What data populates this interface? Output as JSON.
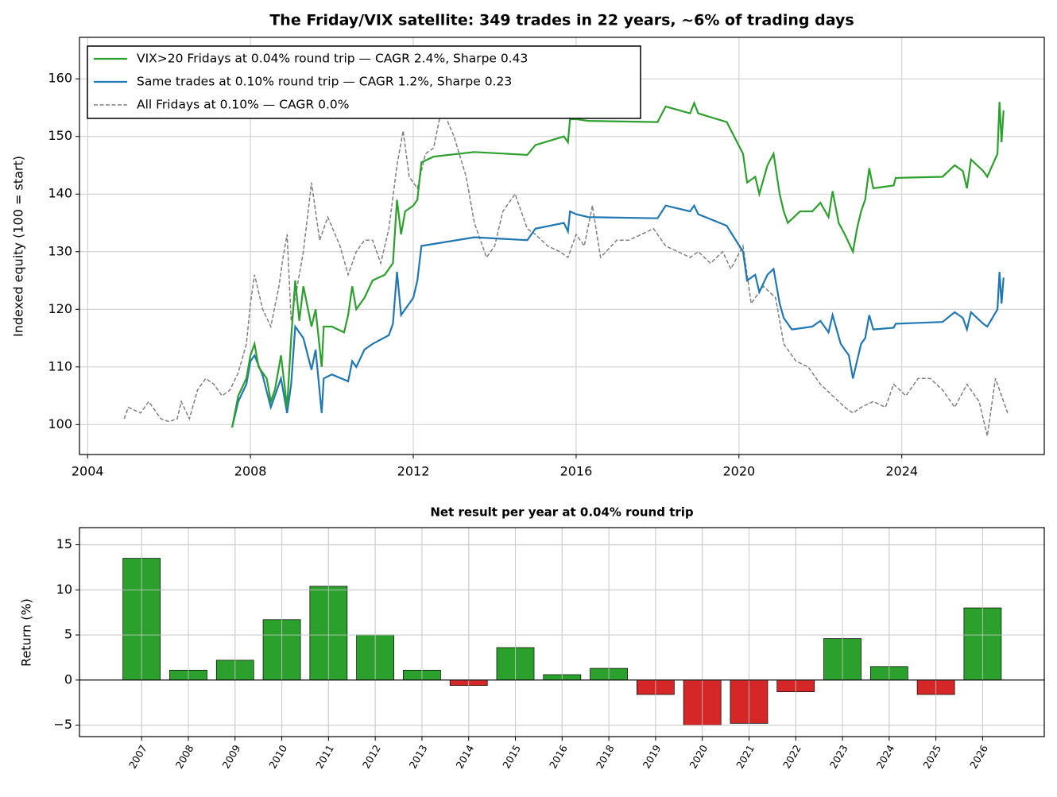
{
  "chart_data": [
    {
      "type": "line",
      "title": "The Friday/VIX satellite: 349 trades in 22 years, ~6% of trading days",
      "y_label": "Indexed equity (100 = start)",
      "xlim": [
        2003.8,
        2027.5
      ],
      "xticks": [
        2004,
        2008,
        2012,
        2016,
        2020,
        2024
      ],
      "ylim": [
        94.8,
        167.2
      ],
      "yticks": [
        100,
        110,
        120,
        130,
        140,
        150,
        160
      ],
      "grid": true,
      "legend": "upper left",
      "series": [
        {
          "name": "VIX>20 Fridays at 0.04% round trip — CAGR 2.4%, Sharpe 0.43",
          "color": "#2ca02c",
          "linestyle": "solid",
          "x": [
            2007.55,
            2007.7,
            2007.9,
            2008.0,
            2008.1,
            2008.2,
            2008.4,
            2008.5,
            2008.6,
            2008.75,
            2008.9,
            2009.0,
            2009.1,
            2009.2,
            2009.3,
            2009.5,
            2009.6,
            2009.75,
            2009.8,
            2010.0,
            2010.3,
            2010.4,
            2010.5,
            2010.6,
            2010.8,
            2011.0,
            2011.3,
            2011.5,
            2011.6,
            2011.7,
            2011.8,
            2012.0,
            2012.1,
            2012.2,
            2012.5,
            2013.5,
            2014.8,
            2015.0,
            2015.7,
            2015.8,
            2015.85,
            2016.0,
            2016.3,
            2018.0,
            2018.2,
            2018.8,
            2018.9,
            2019.0,
            2019.7,
            2020.1,
            2020.2,
            2020.4,
            2020.5,
            2020.7,
            2020.85,
            2021.0,
            2021.1,
            2021.2,
            2021.5,
            2021.8,
            2022.0,
            2022.2,
            2022.3,
            2022.45,
            2022.6,
            2022.8,
            2022.9,
            2023.0,
            2023.1,
            2023.2,
            2023.3,
            2023.8,
            2023.85,
            2025.0,
            2025.3,
            2025.5,
            2025.6,
            2025.7,
            2026.0,
            2026.1,
            2026.35,
            2026.4,
            2026.45,
            2026.5
          ],
          "values": [
            99.5,
            105,
            108,
            112,
            114,
            110,
            108,
            104,
            106,
            112,
            103,
            115,
            125,
            118,
            124,
            117,
            120,
            110,
            117,
            117,
            116,
            119,
            124,
            120,
            122,
            125,
            126,
            128,
            139,
            133,
            137,
            138,
            139,
            145.5,
            146.5,
            147.3,
            146.8,
            148.5,
            150,
            149,
            153,
            153,
            152.7,
            152.5,
            155.2,
            154,
            155.8,
            154,
            152.5,
            147,
            142,
            143,
            140,
            145,
            147,
            140,
            137,
            135,
            137,
            137,
            138.5,
            136,
            140.5,
            135,
            133,
            130,
            134,
            137,
            139,
            144.5,
            141,
            141.5,
            142.8,
            143,
            145,
            144,
            141,
            146,
            144,
            143,
            147,
            156,
            149,
            154.5
          ]
        },
        {
          "name": "Same trades at 0.10% round trip — CAGR 1.2%, Sharpe 0.23",
          "color": "#1f77b4",
          "linestyle": "solid",
          "x": [
            2007.55,
            2007.7,
            2007.9,
            2008.0,
            2008.1,
            2008.3,
            2008.5,
            2008.6,
            2008.75,
            2008.9,
            2009.0,
            2009.1,
            2009.3,
            2009.5,
            2009.6,
            2009.75,
            2009.8,
            2010.0,
            2010.4,
            2010.5,
            2010.6,
            2010.8,
            2011.0,
            2011.4,
            2011.5,
            2011.6,
            2011.7,
            2011.9,
            2012.0,
            2012.1,
            2012.2,
            2013.5,
            2014.8,
            2015.0,
            2015.7,
            2015.8,
            2015.85,
            2016.0,
            2016.3,
            2018.0,
            2018.2,
            2018.8,
            2018.9,
            2019.0,
            2019.7,
            2020.1,
            2020.2,
            2020.4,
            2020.5,
            2020.7,
            2020.85,
            2021.0,
            2021.1,
            2021.3,
            2021.8,
            2022.0,
            2022.2,
            2022.3,
            2022.5,
            2022.7,
            2022.8,
            2022.9,
            2023.0,
            2023.1,
            2023.2,
            2023.3,
            2023.8,
            2023.85,
            2025.0,
            2025.3,
            2025.5,
            2025.6,
            2025.7,
            2026.0,
            2026.1,
            2026.35,
            2026.4,
            2026.45,
            2026.5
          ],
          "values": [
            99.5,
            104,
            107,
            111,
            112,
            108.5,
            103,
            105,
            108,
            102,
            107,
            117,
            115,
            109.5,
            113,
            102,
            108,
            108.7,
            107.5,
            111,
            110,
            113,
            114,
            115.5,
            117.5,
            126.5,
            119,
            121,
            122,
            125,
            131,
            132.5,
            132,
            134,
            135,
            133.5,
            137,
            136.5,
            136,
            135.8,
            138,
            137,
            138,
            136.5,
            134.5,
            130,
            125,
            126,
            123,
            126,
            127,
            121,
            118.5,
            116.5,
            117,
            118,
            116,
            119,
            114,
            112,
            108,
            111,
            114,
            115,
            119,
            116.5,
            116.8,
            117.5,
            117.8,
            119.5,
            118.5,
            116.5,
            119.5,
            117.5,
            117,
            120,
            126.5,
            121,
            125.5
          ]
        },
        {
          "name": "All Fridays at 0.10% — CAGR 0.0%",
          "color": "#7f7f7f",
          "linestyle": "dashed",
          "x": [
            2004.9,
            2005.0,
            2005.3,
            2005.5,
            2005.8,
            2006.0,
            2006.2,
            2006.3,
            2006.5,
            2006.7,
            2006.9,
            2007.1,
            2007.3,
            2007.5,
            2007.7,
            2007.9,
            2008.0,
            2008.1,
            2008.3,
            2008.5,
            2008.7,
            2008.8,
            2008.9,
            2009.0,
            2009.2,
            2009.3,
            2009.5,
            2009.7,
            2009.9,
            2010.2,
            2010.4,
            2010.6,
            2010.8,
            2011.0,
            2011.2,
            2011.4,
            2011.6,
            2011.75,
            2011.9,
            2012.1,
            2012.3,
            2012.5,
            2012.7,
            2013.0,
            2013.3,
            2013.5,
            2013.8,
            2014.0,
            2014.2,
            2014.5,
            2014.8,
            2015.0,
            2015.3,
            2015.6,
            2015.8,
            2016.0,
            2016.2,
            2016.4,
            2016.6,
            2017.0,
            2017.3,
            2017.6,
            2017.9,
            2018.2,
            2018.5,
            2018.8,
            2019.0,
            2019.3,
            2019.6,
            2019.8,
            2020.1,
            2020.3,
            2020.6,
            2020.9,
            2021.1,
            2021.4,
            2021.7,
            2022.0,
            2022.3,
            2022.6,
            2022.8,
            2023.0,
            2023.3,
            2023.6,
            2023.8,
            2024.1,
            2024.4,
            2024.7,
            2025.0,
            2025.3,
            2025.6,
            2025.9,
            2026.1,
            2026.3,
            2026.5,
            2026.6
          ],
          "values": [
            101,
            103,
            102,
            104,
            101,
            100.5,
            101,
            104,
            101,
            106,
            108,
            107,
            105,
            106,
            109,
            114,
            121,
            126,
            120,
            117,
            124,
            129,
            133,
            118,
            126,
            130,
            142,
            132,
            136,
            131,
            126,
            130,
            132,
            132,
            128,
            134,
            145,
            151,
            143,
            141,
            147,
            148,
            155,
            150,
            143,
            135,
            129,
            131,
            137,
            140,
            134,
            133,
            131,
            130,
            129,
            133,
            131,
            138,
            129,
            132,
            132,
            133,
            134,
            131,
            130,
            129,
            130,
            128,
            130,
            127,
            131,
            121,
            124,
            122,
            114,
            111,
            110,
            107,
            105,
            103,
            102,
            103,
            104,
            103,
            107,
            105,
            108,
            108,
            106,
            103,
            107,
            104,
            98,
            108,
            104,
            102
          ]
        }
      ]
    },
    {
      "type": "bar",
      "title": "Net result per year at 0.04% round trip",
      "y_label": "Return (%)",
      "categories": [
        "2007",
        "2008",
        "2009",
        "2010",
        "2011",
        "2012",
        "2013",
        "2014",
        "2015",
        "2016",
        "2018",
        "2019",
        "2020",
        "2021",
        "2022",
        "2023",
        "2024",
        "2025",
        "2026"
      ],
      "values": [
        13.5,
        1.1,
        2.2,
        6.7,
        10.4,
        5.0,
        1.1,
        -0.6,
        3.6,
        0.6,
        1.3,
        -1.6,
        -5.0,
        -4.8,
        -1.3,
        4.6,
        1.5,
        -1.6,
        8.0
      ],
      "positive_color": "#2ca02c",
      "negative_color": "#d62728",
      "ylim": [
        -6.27,
        16.9
      ],
      "yticks": [
        {
          "value": -5,
          "label": "−5"
        },
        0,
        5,
        10,
        15
      ],
      "grid": true
    }
  ]
}
